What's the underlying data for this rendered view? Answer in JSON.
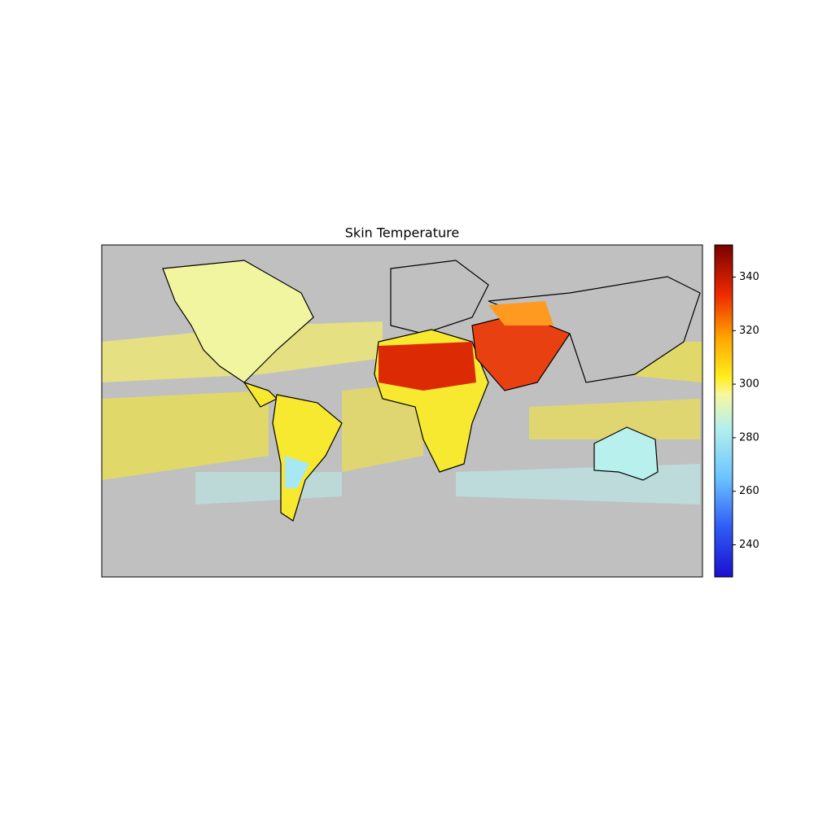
{
  "chart_data": {
    "type": "map",
    "title": "Skin Temperature",
    "colorbar": {
      "lim": [
        228,
        352
      ],
      "ticks": [
        240,
        260,
        280,
        300,
        320,
        340
      ]
    }
  }
}
